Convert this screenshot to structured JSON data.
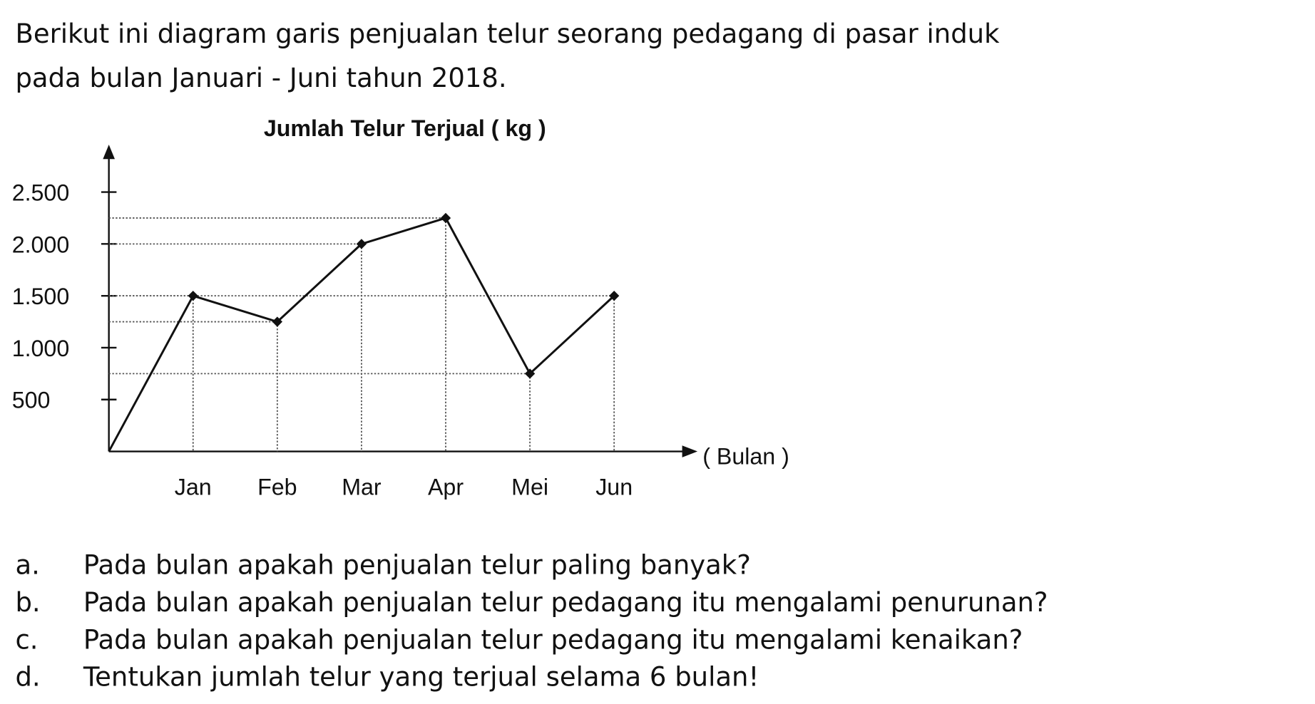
{
  "intro": [
    "Berikut ini diagram garis penjualan telur seorang pedagang di pasar induk",
    "pada bulan Januari - Juni tahun 2018."
  ],
  "chart_data": {
    "type": "line",
    "title": "Jumlah Telur Terjual ( kg )",
    "x_label": "( Bulan )",
    "categories": [
      null,
      "Jan",
      "Feb",
      "Mar",
      "Apr",
      "Mei",
      "Jun"
    ],
    "values": [
      0,
      1500,
      1250,
      2000,
      2250,
      750,
      1500
    ],
    "color": "#111111",
    "ylim": [
      0,
      2900
    ],
    "yticks": [
      500,
      {
        "value": 1000,
        "label": "1.000"
      },
      {
        "value": 1500,
        "label": "1.500"
      },
      {
        "value": 2000,
        "label": "2.000"
      },
      {
        "value": 2500,
        "label": "2.500"
      }
    ],
    "grid": false
  },
  "questions": [
    {
      "letter": "a.",
      "text": "Pada bulan apakah penjualan telur paling banyak?"
    },
    {
      "letter": "b.",
      "text": "Pada bulan apakah penjualan telur pedagang itu mengalami penurunan?"
    },
    {
      "letter": "c.",
      "text": "Pada bulan apakah penjualan telur pedagang itu mengalami kenaikan?"
    },
    {
      "letter": "d.",
      "text": "Tentukan jumlah telur yang terjual selama 6 bulan!"
    }
  ]
}
